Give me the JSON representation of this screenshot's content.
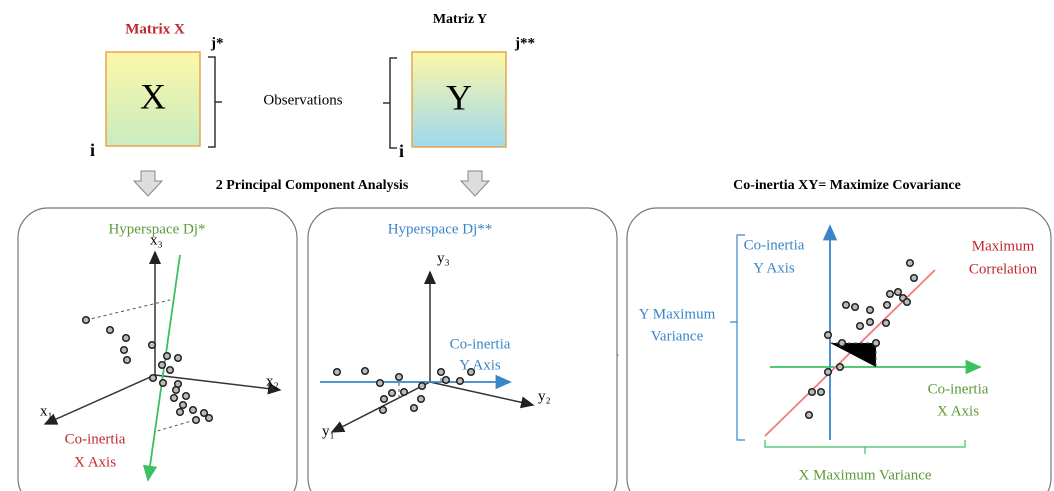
{
  "matrix_x": {
    "title": "Matrix X",
    "symbol": "X",
    "row_index": "i",
    "col_index": "j*"
  },
  "matrix_y": {
    "title": "Matriz Y",
    "symbol": "Y",
    "row_index": "i",
    "col_index": "j**"
  },
  "observations": "Observations",
  "pca_label": "2 Principal Component Analysis",
  "coinertia_title": "Co-inertia XY= Maximize Covariance",
  "panel_x": {
    "title": "Hyperspace Dj*",
    "axes": [
      "x₁",
      "x₂",
      "x₃"
    ],
    "axis_label": [
      "Co-inertia",
      "X Axis"
    ]
  },
  "panel_y": {
    "title": "Hyperspace Dj**",
    "axes": [
      "y₁",
      "y₂",
      "y₃"
    ],
    "axis_label": [
      "Co-inertia",
      "Y Axis"
    ]
  },
  "panel_xy": {
    "y_axis_label": [
      "Co-inertia",
      "Y Axis"
    ],
    "x_axis_label": [
      "Co-inertia",
      "X Axis"
    ],
    "correlation_label": [
      "Maximum",
      "Correlation"
    ],
    "y_variance_label": [
      "Y Maximum",
      "Variance"
    ],
    "x_variance_label": "X Maximum Variance"
  }
}
